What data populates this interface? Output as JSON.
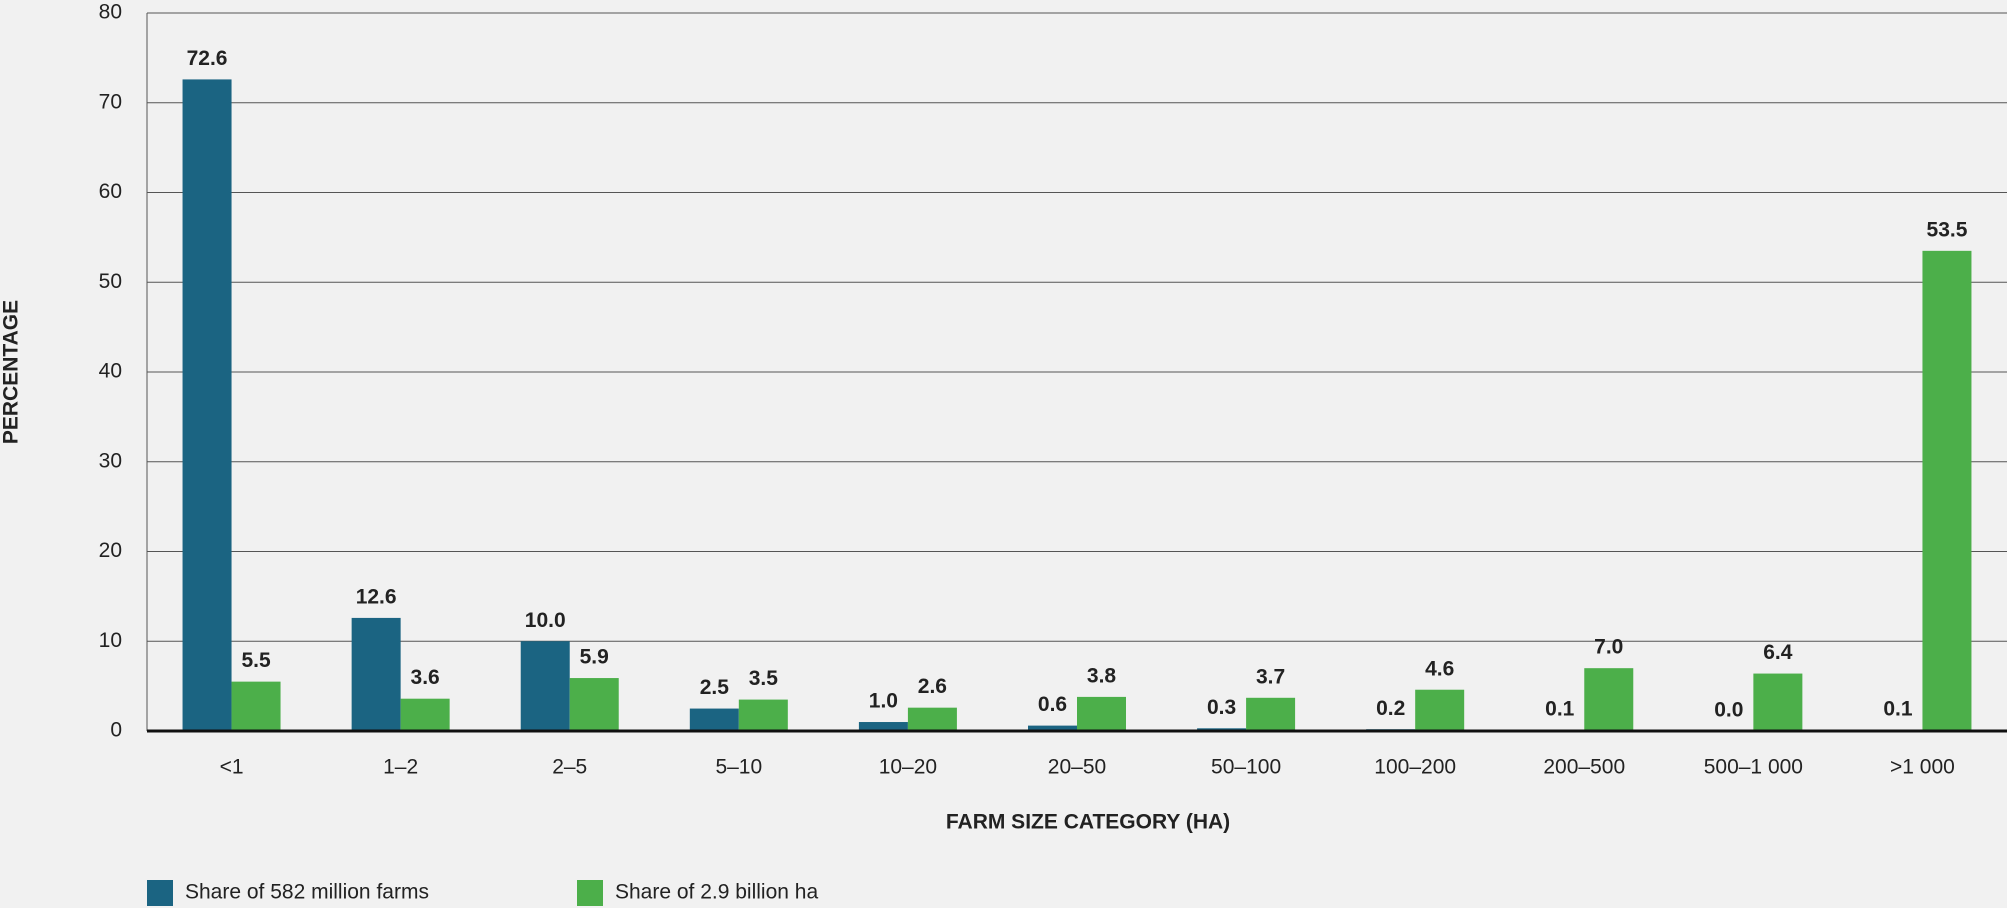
{
  "chart_data": {
    "type": "bar",
    "x_label": "FARM SIZE CATEGORY (HA)",
    "y_label": "PERCENTAGE",
    "categories": [
      "<1",
      "1–2",
      "2–5",
      "5–10",
      "10–20",
      "20–50",
      "50–100",
      "100–200",
      "200–500",
      "500–1 000",
      ">1 000"
    ],
    "series": [
      {
        "name": "Share of 582 million farms",
        "color": "#1b6482",
        "values": [
          72.6,
          12.6,
          10.0,
          2.5,
          1.0,
          0.6,
          0.3,
          0.2,
          0.1,
          0.0,
          0.1
        ],
        "value_labels": [
          "72.6",
          "12.6",
          "10.0",
          "2.5",
          "1.0",
          "0.6",
          "0.3",
          "0.2",
          "0.1",
          "0.0",
          "0.1"
        ]
      },
      {
        "name": "Share of 2.9 billion ha",
        "color": "#4caf4a",
        "values": [
          5.5,
          3.6,
          5.9,
          3.5,
          2.6,
          3.8,
          3.7,
          4.6,
          7.0,
          6.4,
          53.5
        ],
        "value_labels": [
          "5.5",
          "3.6",
          "5.9",
          "3.5",
          "2.6",
          "3.8",
          "3.7",
          "4.6",
          "7.0",
          "6.4",
          "53.5"
        ]
      }
    ],
    "ylim": [
      0,
      80
    ],
    "yticks": [
      0,
      10,
      20,
      30,
      40,
      50,
      60,
      70,
      80
    ],
    "grid": true
  }
}
